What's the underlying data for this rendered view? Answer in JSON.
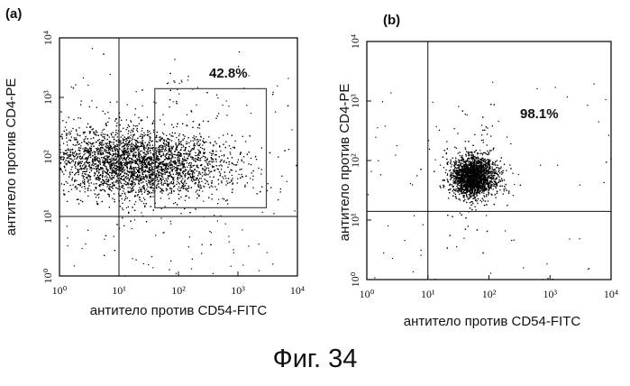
{
  "caption": "Фиг. 34",
  "chart_data": [
    {
      "type": "scatter",
      "panel_label": "(a)",
      "xlabel": "антитело против CD54-FITC",
      "ylabel": "антитело против CD4-PE",
      "x_scale": "log",
      "y_scale": "log",
      "xlim": [
        1,
        10000
      ],
      "ylim": [
        1,
        10000
      ],
      "x_ticks": [
        "10⁰",
        "10¹",
        "10²",
        "10³",
        "10⁴"
      ],
      "y_ticks": [
        "10⁰",
        "10¹",
        "10²",
        "10³",
        "10⁴"
      ],
      "quadrant_lines": {
        "x": 10,
        "y": 10
      },
      "gate": {
        "x_range": [
          40,
          3000
        ],
        "y_range": [
          14,
          1400
        ]
      },
      "gate_percentage": "42.8%",
      "population": {
        "center_x": 20,
        "center_y": 80,
        "spread_x_decades": 0.75,
        "spread_y_decades": 0.28
      },
      "color": "#000000"
    },
    {
      "type": "scatter",
      "panel_label": "(b)",
      "xlabel": "антитело против CD54-FITC",
      "ylabel": "антитело против CD4-PE",
      "x_scale": "log",
      "y_scale": "log",
      "xlim": [
        1,
        10000
      ],
      "ylim": [
        1,
        10000
      ],
      "x_ticks": [
        "10⁰",
        "10¹",
        "10²",
        "10³",
        "10⁴"
      ],
      "y_ticks": [
        "10⁰",
        "10¹",
        "10²",
        "10³",
        "10⁴"
      ],
      "quadrant_lines": {
        "x": 10,
        "y": 14
      },
      "gate_percentage": "98.1%",
      "population": {
        "center_x": 55,
        "center_y": 55,
        "spread_x_decades": 0.18,
        "spread_y_decades": 0.16
      },
      "color": "#000000"
    }
  ]
}
